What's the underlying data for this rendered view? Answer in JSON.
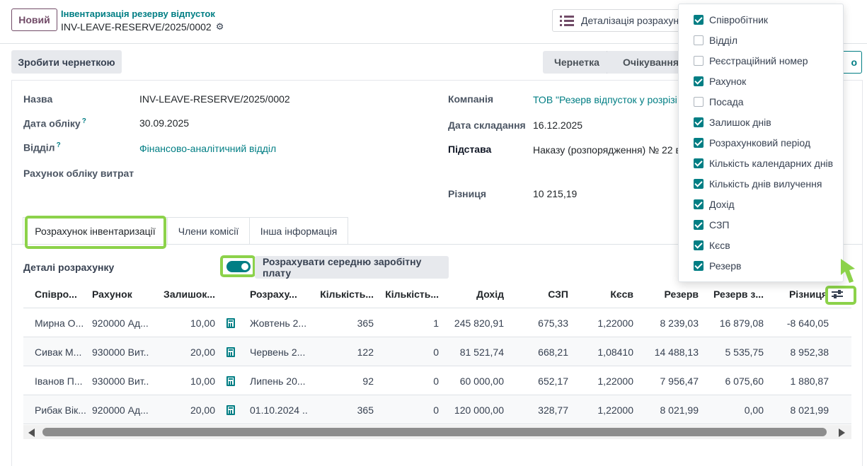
{
  "topbar": {
    "new_button": "Новий",
    "breadcrumb_parent": "Інвентаризація резерву відпусток",
    "breadcrumb_current": "INV-LEAVE-RESERVE/2025/0002",
    "detail_button": "Деталізація розрахунку"
  },
  "actions": {
    "draft_button": "Зробити чернеткою",
    "stages": [
      "Чернетка",
      "Очікування"
    ],
    "right_button": "о"
  },
  "form": {
    "name_label": "Назва",
    "name_value": "INV-LEAVE-RESERVE/2025/0002",
    "date_label": "Дата обліку",
    "date_help": "?",
    "date_value": "30.09.2025",
    "dept_label": "Відділ",
    "dept_help": "?",
    "dept_value": "Фінансово-аналітичний відділ",
    "expense_label": "Рахунок обліку витрат",
    "company_label": "Компанія",
    "company_value": "ТОВ \"Резерв відпусток у розрізі",
    "doc_date_label": "Дата складання",
    "doc_date_value": "16.12.2025",
    "basis_label": "Підстава",
    "basis_value": "Наказу (розпорядження) № 22 в",
    "diff_label": "Різниця",
    "diff_value": "10 215,19"
  },
  "tabs": [
    "Розрахунок інвентаризації",
    "Члени комісії",
    "Інша інформація"
  ],
  "details": {
    "title": "Деталі розрахунку",
    "toggle_label": "Розрахувати середню заробітну плату",
    "toggle_on": true
  },
  "table": {
    "headers": [
      "Співро...",
      "Рахунок",
      "Залишок...",
      "",
      "Розраху...",
      "Кількість...",
      "Кількість...",
      "Дохід",
      "СЗП",
      "Кєсв",
      "Резерв",
      "Резерв з...",
      "Різниця"
    ],
    "rows": [
      [
        "Мирна О...",
        "920000 Ад...",
        "10,00",
        "",
        "Жовтень 2...",
        "365",
        "1",
        "245 820,91",
        "675,33",
        "1,22000",
        "8 239,03",
        "16 879,08",
        "-8 640,05"
      ],
      [
        "Сивак М...",
        "930000 Вит...",
        "20,00",
        "",
        "Червень 2...",
        "122",
        "0",
        "81 521,74",
        "668,21",
        "1,08410",
        "14 488,13",
        "5 535,75",
        "8 952,38"
      ],
      [
        "Іванов П...",
        "930000 Вит...",
        "10,00",
        "",
        "Липень 20...",
        "92",
        "0",
        "60 000,00",
        "652,17",
        "1,22000",
        "7 956,47",
        "6 075,60",
        "1 880,87"
      ],
      [
        "Рибак Вік...",
        "920000 Ад...",
        "20,00",
        "",
        "01.10.2024 ...",
        "365",
        "0",
        "120 000,00",
        "328,77",
        "1,22000",
        "8 021,99",
        "0,00",
        "8 021,99"
      ]
    ]
  },
  "column_options": [
    {
      "label": "Співробітник",
      "checked": true
    },
    {
      "label": "Відділ",
      "checked": false
    },
    {
      "label": "Реєстраційний номер",
      "checked": false
    },
    {
      "label": "Рахунок",
      "checked": true
    },
    {
      "label": "Посада",
      "checked": false
    },
    {
      "label": "Залишок днів",
      "checked": true
    },
    {
      "label": "Розрахунковий період",
      "checked": true
    },
    {
      "label": "Кількість календарних днів",
      "checked": true
    },
    {
      "label": "Кількість днів вилучення",
      "checked": true
    },
    {
      "label": "Дохід",
      "checked": true
    },
    {
      "label": "СЗП",
      "checked": true
    },
    {
      "label": "Кєсв",
      "checked": true
    },
    {
      "label": "Резерв",
      "checked": true
    }
  ],
  "colors": {
    "brand": "#714b67",
    "accent": "#017e84",
    "highlight": "#8cd24a"
  }
}
